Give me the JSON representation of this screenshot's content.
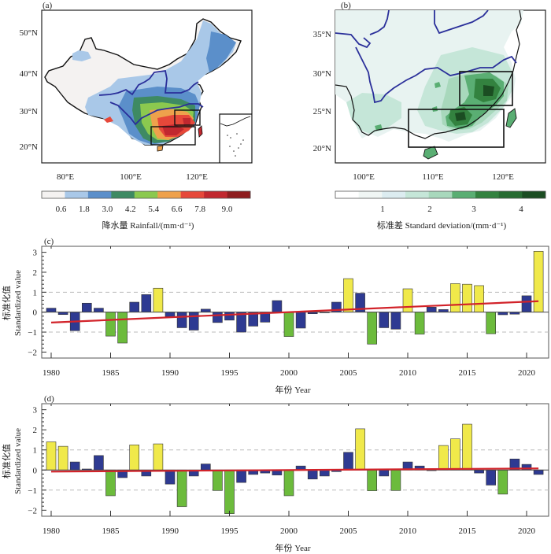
{
  "chart_data": [
    {
      "type": "heatmap",
      "panel_label": "(a)",
      "title": "",
      "description": "Map of China mean rainfall with river lines and two study boxes",
      "y_ticks": [
        "50°N",
        "40°N",
        "30°N",
        "20°N"
      ],
      "x_ticks": [
        "80°E",
        "100°E",
        "120°E"
      ],
      "colorbar": {
        "label": "降水量 Rainfall/(mm·d⁻¹)",
        "tick_labels": [
          "0.6",
          "1.8",
          "3.0",
          "4.2",
          "5.4",
          "6.6",
          "7.8",
          "9.0"
        ],
        "colors": [
          "#f4f2f1",
          "#a9c8e8",
          "#5b8fca",
          "#3e8a63",
          "#8bc94f",
          "#eea14c",
          "#e6483a",
          "#c1282f",
          "#8e1d1f"
        ]
      },
      "boxes": [
        {
          "name": "north-box",
          "lon": [
            113,
            121
          ],
          "lat": [
            26,
            30
          ]
        },
        {
          "name": "south-box",
          "lon": [
            106,
            120
          ],
          "lat": [
            20,
            25
          ]
        }
      ]
    },
    {
      "type": "heatmap",
      "panel_label": "(b)",
      "title": "",
      "description": "Standard deviation map of southern China with river lines and two study boxes",
      "y_ticks": [
        "35°N",
        "30°N",
        "25°N",
        "20°N"
      ],
      "x_ticks": [
        "100°E",
        "110°E",
        "120°E"
      ],
      "colorbar": {
        "label": "标准差 Standard deviation/(mm·d⁻¹)",
        "tick_labels": [
          "1",
          "2",
          "3",
          "4"
        ],
        "colors": [
          "#ffffff",
          "#f0f6f4",
          "#dcecf0",
          "#c5e6d8",
          "#a8d8bc",
          "#5aae73",
          "#33823f",
          "#276b31",
          "#1b4d22"
        ]
      },
      "boxes": [
        {
          "name": "north-box",
          "lon": [
            113,
            121
          ],
          "lat": [
            26,
            30
          ]
        },
        {
          "name": "south-box",
          "lon": [
            106,
            120
          ],
          "lat": [
            20,
            25
          ]
        }
      ]
    },
    {
      "type": "bar",
      "panel_label": "(c)",
      "title": "",
      "xlabel": "年份 Year",
      "ylabel_cn": "标准化值",
      "ylabel_en": "Standardized value",
      "ylim": [
        -2.3,
        3.3
      ],
      "y_ticks": [
        "3",
        "2",
        "1",
        "0",
        "-1",
        "-2"
      ],
      "x_ticks": [
        "1980",
        "1985",
        "1990",
        "1995",
        "2000",
        "2005",
        "2010",
        "2015",
        "2020"
      ],
      "reference_lines": [
        1,
        -1
      ],
      "x": [
        1980,
        1981,
        1982,
        1983,
        1984,
        1985,
        1986,
        1987,
        1988,
        1989,
        1990,
        1991,
        1992,
        1993,
        1994,
        1995,
        1996,
        1997,
        1998,
        1999,
        2000,
        2001,
        2002,
        2003,
        2004,
        2005,
        2006,
        2007,
        2008,
        2009,
        2010,
        2011,
        2012,
        2013,
        2014,
        2015,
        2016,
        2017,
        2018,
        2019,
        2020,
        2021
      ],
      "values": [
        0.2,
        -0.12,
        -0.93,
        0.45,
        0.2,
        -1.2,
        -1.55,
        0.5,
        0.88,
        1.2,
        -0.22,
        -0.78,
        -0.9,
        0.15,
        -0.52,
        -0.4,
        -1.0,
        -0.7,
        -0.5,
        0.58,
        -1.22,
        -0.8,
        -0.08,
        0.0,
        0.5,
        1.68,
        0.95,
        -1.6,
        -0.78,
        -0.85,
        1.17,
        -1.1,
        0.25,
        0.13,
        1.43,
        1.4,
        1.33,
        -1.08,
        -0.13,
        -0.1,
        0.82,
        3.05
      ],
      "trend": {
        "x": [
          1980,
          2021
        ],
        "y": [
          -0.52,
          0.55
        ]
      },
      "colors": {
        "above_1": "#f0e94a",
        "below_minus1": "#6cbb3c",
        "normal": "#2e3a92",
        "trend": "#d2232a"
      }
    },
    {
      "type": "bar",
      "panel_label": "(d)",
      "title": "",
      "xlabel": "年份 Year",
      "ylabel_cn": "标准化值",
      "ylabel_en": "Standardized value",
      "ylim": [
        -2.3,
        3.3
      ],
      "y_ticks": [
        "3",
        "2",
        "1",
        "0",
        "-1",
        "-2"
      ],
      "x_ticks": [
        "1980",
        "1985",
        "1990",
        "1995",
        "2000",
        "2005",
        "2010",
        "2015",
        "2020"
      ],
      "reference_lines": [
        1,
        -1
      ],
      "x": [
        1980,
        1981,
        1982,
        1983,
        1984,
        1985,
        1986,
        1987,
        1988,
        1989,
        1990,
        1991,
        1992,
        1993,
        1994,
        1995,
        1996,
        1997,
        1998,
        1999,
        2000,
        2001,
        2002,
        2003,
        2004,
        2005,
        2006,
        2007,
        2008,
        2009,
        2010,
        2011,
        2012,
        2013,
        2014,
        2015,
        2016,
        2017,
        2018,
        2019,
        2020,
        2021
      ],
      "values": [
        1.4,
        1.18,
        0.4,
        0.05,
        0.72,
        -1.28,
        -0.38,
        1.25,
        -0.3,
        1.3,
        -0.7,
        -1.82,
        -0.3,
        0.3,
        -1.02,
        -2.17,
        -0.62,
        -0.22,
        -0.15,
        -0.25,
        -1.28,
        0.2,
        -0.45,
        -0.3,
        -0.08,
        0.88,
        2.05,
        -1.03,
        -0.3,
        -1.02,
        0.4,
        0.2,
        0.0,
        1.22,
        1.55,
        2.28,
        -0.15,
        -0.75,
        -1.2,
        0.55,
        0.28,
        -0.22
      ],
      "trend": {
        "x": [
          1980,
          2021
        ],
        "y": [
          -0.08,
          0.08
        ]
      },
      "colors": {
        "above_1": "#f0e94a",
        "below_minus1": "#6cbb3c",
        "normal": "#2e3a92",
        "trend": "#d2232a"
      }
    }
  ]
}
